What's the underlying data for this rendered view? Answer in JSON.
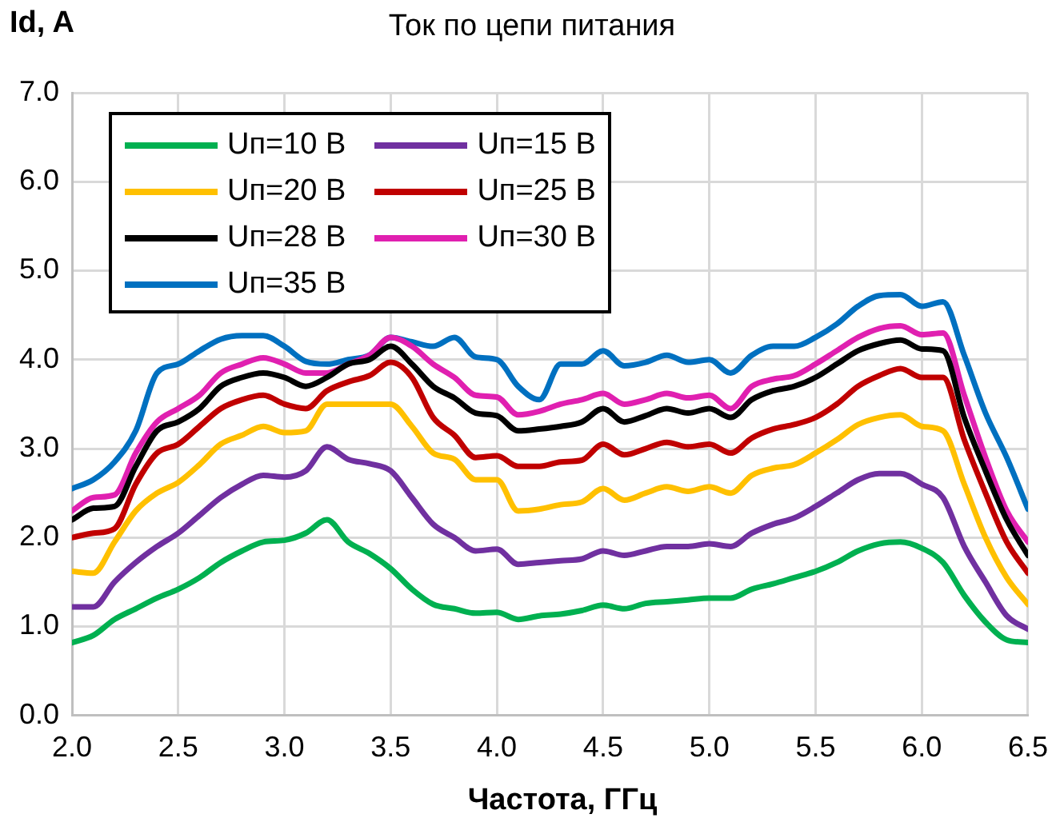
{
  "chart_data": {
    "type": "line",
    "title": "Ток по цепи питания",
    "xlabel": "Частота, ГГц",
    "ylabel": "Id, A",
    "x": [
      2.0,
      2.1,
      2.2,
      2.3,
      2.4,
      2.5,
      2.6,
      2.7,
      2.8,
      2.9,
      3.0,
      3.1,
      3.2,
      3.3,
      3.4,
      3.5,
      3.6,
      3.7,
      3.8,
      3.9,
      4.0,
      4.1,
      4.2,
      4.3,
      4.4,
      4.5,
      4.6,
      4.7,
      4.8,
      4.9,
      5.0,
      5.1,
      5.2,
      5.3,
      5.4,
      5.5,
      5.6,
      5.7,
      5.8,
      5.9,
      6.0,
      6.1,
      6.2,
      6.3,
      6.4,
      6.5
    ],
    "series": [
      {
        "name": "Uп=10 В",
        "color": "#00b050",
        "values": [
          0.82,
          0.9,
          1.08,
          1.2,
          1.32,
          1.42,
          1.55,
          1.72,
          1.85,
          1.95,
          1.97,
          2.05,
          2.2,
          1.95,
          1.82,
          1.65,
          1.42,
          1.25,
          1.2,
          1.15,
          1.16,
          1.08,
          1.12,
          1.14,
          1.18,
          1.24,
          1.2,
          1.26,
          1.28,
          1.3,
          1.32,
          1.32,
          1.42,
          1.48,
          1.55,
          1.62,
          1.72,
          1.85,
          1.93,
          1.95,
          1.88,
          1.72,
          1.35,
          1.05,
          0.85,
          0.82
        ]
      },
      {
        "name": "Uп=15 В",
        "color": "#7030a0",
        "values": [
          1.22,
          1.22,
          1.5,
          1.72,
          1.9,
          2.05,
          2.25,
          2.45,
          2.6,
          2.7,
          2.68,
          2.75,
          3.02,
          2.88,
          2.83,
          2.75,
          2.45,
          2.15,
          2.0,
          1.85,
          1.87,
          1.7,
          1.72,
          1.74,
          1.76,
          1.85,
          1.8,
          1.85,
          1.9,
          1.9,
          1.93,
          1.9,
          2.05,
          2.15,
          2.22,
          2.35,
          2.5,
          2.65,
          2.72,
          2.72,
          2.6,
          2.45,
          1.9,
          1.5,
          1.12,
          0.97
        ]
      },
      {
        "name": "Uп=20 В",
        "color": "#ffc000",
        "values": [
          1.62,
          1.6,
          1.95,
          2.3,
          2.5,
          2.62,
          2.82,
          3.05,
          3.15,
          3.25,
          3.18,
          3.2,
          3.5,
          3.5,
          3.5,
          3.5,
          3.25,
          2.95,
          2.88,
          2.65,
          2.65,
          2.3,
          2.32,
          2.37,
          2.4,
          2.55,
          2.42,
          2.5,
          2.57,
          2.52,
          2.57,
          2.5,
          2.7,
          2.78,
          2.82,
          2.95,
          3.1,
          3.27,
          3.35,
          3.38,
          3.25,
          3.2,
          2.6,
          2.0,
          1.55,
          1.25
        ]
      },
      {
        "name": "Uп=25 В",
        "color": "#c00000",
        "values": [
          2.0,
          2.05,
          2.1,
          2.6,
          2.95,
          3.05,
          3.25,
          3.45,
          3.55,
          3.6,
          3.5,
          3.45,
          3.65,
          3.75,
          3.82,
          3.97,
          3.8,
          3.35,
          3.15,
          2.9,
          2.92,
          2.8,
          2.8,
          2.85,
          2.87,
          3.05,
          2.93,
          3.0,
          3.07,
          3.02,
          3.05,
          2.95,
          3.12,
          3.22,
          3.27,
          3.35,
          3.5,
          3.7,
          3.82,
          3.9,
          3.8,
          3.8,
          3.1,
          2.5,
          1.95,
          1.6
        ]
      },
      {
        "name": "Uп=28 В",
        "color": "#000000",
        "values": [
          2.2,
          2.33,
          2.35,
          2.8,
          3.2,
          3.3,
          3.45,
          3.7,
          3.8,
          3.85,
          3.8,
          3.7,
          3.8,
          3.95,
          4.0,
          4.15,
          3.95,
          3.7,
          3.57,
          3.4,
          3.37,
          3.2,
          3.22,
          3.25,
          3.3,
          3.45,
          3.3,
          3.37,
          3.45,
          3.4,
          3.45,
          3.35,
          3.55,
          3.65,
          3.7,
          3.8,
          3.95,
          4.1,
          4.18,
          4.22,
          4.12,
          4.1,
          3.35,
          2.75,
          2.2,
          1.8
        ]
      },
      {
        "name": "Uп=30 В",
        "color": "#e020b0",
        "values": [
          2.3,
          2.45,
          2.48,
          2.95,
          3.3,
          3.45,
          3.6,
          3.85,
          3.95,
          4.02,
          3.95,
          3.85,
          3.85,
          3.95,
          4.05,
          4.25,
          4.15,
          3.95,
          3.8,
          3.6,
          3.58,
          3.38,
          3.42,
          3.5,
          3.55,
          3.62,
          3.5,
          3.55,
          3.62,
          3.57,
          3.6,
          3.45,
          3.7,
          3.78,
          3.82,
          3.95,
          4.1,
          4.25,
          4.35,
          4.38,
          4.28,
          4.3,
          3.6,
          2.9,
          2.3,
          1.95
        ]
      },
      {
        "name": "Uп=35 В",
        "color": "#0070c0",
        "values": [
          2.55,
          2.65,
          2.85,
          3.2,
          3.85,
          3.95,
          4.1,
          4.23,
          4.27,
          4.27,
          4.15,
          3.98,
          3.95,
          4.0,
          4.05,
          4.25,
          4.2,
          4.15,
          4.25,
          4.03,
          4.0,
          3.7,
          3.55,
          3.95,
          3.95,
          4.1,
          3.93,
          3.97,
          4.05,
          3.97,
          4.0,
          3.85,
          4.05,
          4.15,
          4.15,
          4.25,
          4.4,
          4.6,
          4.72,
          4.73,
          4.6,
          4.65,
          4.05,
          3.4,
          2.9,
          2.32
        ]
      }
    ],
    "xlim": [
      2.0,
      6.5
    ],
    "xticks": [
      {
        "value": 2,
        "label": "2.0"
      },
      {
        "value": 2.5,
        "label": "2.5"
      },
      {
        "value": 3,
        "label": "3.0"
      },
      {
        "value": 3.5,
        "label": "3.5"
      },
      {
        "value": 4,
        "label": "4.0"
      },
      {
        "value": 4.5,
        "label": "4.5"
      },
      {
        "value": 5,
        "label": "5.0"
      },
      {
        "value": 5.5,
        "label": "5.5"
      },
      {
        "value": 6,
        "label": "6.0"
      },
      {
        "value": 6.5,
        "label": "6.5"
      }
    ],
    "ylim": [
      0,
      7
    ],
    "yticks": [
      {
        "value": 0,
        "label": "0.0"
      },
      {
        "value": 1,
        "label": "1.0"
      },
      {
        "value": 2,
        "label": "2.0"
      },
      {
        "value": 3,
        "label": "3.0"
      },
      {
        "value": 4,
        "label": "4.0"
      },
      {
        "value": 5,
        "label": "5.0"
      },
      {
        "value": 6,
        "label": "6.0"
      },
      {
        "value": 7,
        "label": "7.0"
      }
    ],
    "grid": true,
    "legend": "top left",
    "marker": "none",
    "line_style": "solid"
  }
}
